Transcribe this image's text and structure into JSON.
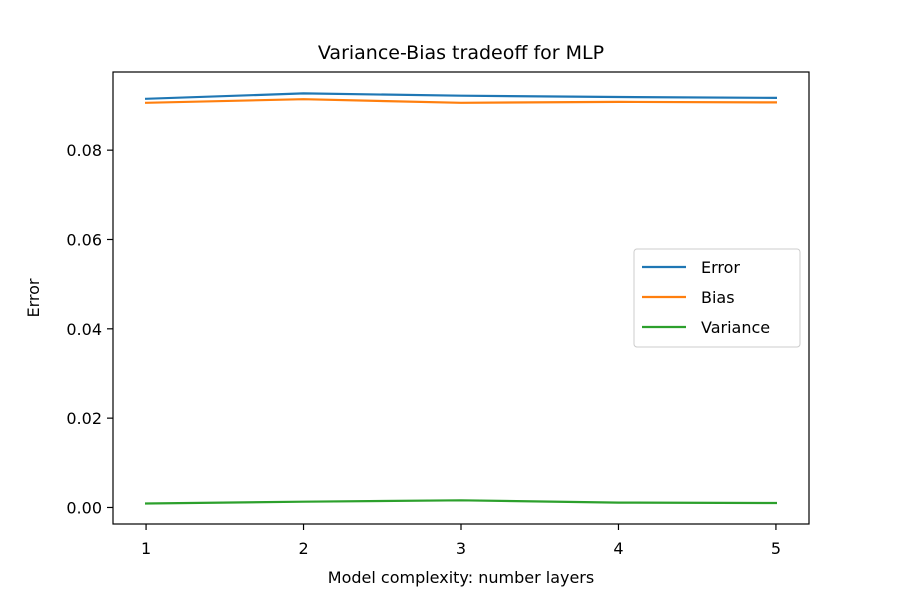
{
  "chart_data": {
    "type": "line",
    "title": "Variance-Bias tradeoff for MLP",
    "xlabel": "Model complexity: number layers",
    "ylabel": "Error",
    "x": [
      1,
      2,
      3,
      4,
      5
    ],
    "x_ticks": [
      "1",
      "2",
      "3",
      "4",
      "5"
    ],
    "y_ticks": [
      "0.00",
      "0.02",
      "0.04",
      "0.06",
      "0.08"
    ],
    "xlim": [
      0.79,
      5.21
    ],
    "ylim": [
      -0.0037,
      0.0975
    ],
    "grid": false,
    "legend_position": "center-right",
    "series": [
      {
        "name": "Error",
        "color": "#1f77b4",
        "values": [
          0.0915,
          0.0927,
          0.0922,
          0.0919,
          0.0917
        ]
      },
      {
        "name": "Bias",
        "color": "#ff7f0e",
        "values": [
          0.0906,
          0.0914,
          0.0906,
          0.0908,
          0.0907
        ]
      },
      {
        "name": "Variance",
        "color": "#2ca02c",
        "values": [
          0.0009,
          0.0013,
          0.0016,
          0.0011,
          0.001
        ]
      }
    ]
  }
}
